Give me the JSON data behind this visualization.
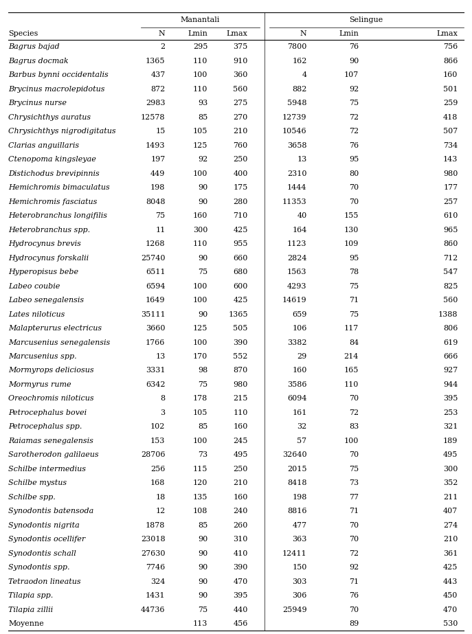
{
  "rows": [
    [
      "Bagrus bajad",
      "2",
      "295",
      "375",
      "7800",
      "76",
      "756"
    ],
    [
      "Bagrus docmak",
      "1365",
      "110",
      "910",
      "162",
      "90",
      "866"
    ],
    [
      "Barbus bynni occidentalis",
      "437",
      "100",
      "360",
      "4",
      "107",
      "160"
    ],
    [
      "Brycinus macrolepidotus",
      "872",
      "110",
      "560",
      "882",
      "92",
      "501"
    ],
    [
      "Brycinus nurse",
      "2983",
      "93",
      "275",
      "5948",
      "75",
      "259"
    ],
    [
      "Chrysichthys auratus",
      "12578",
      "85",
      "270",
      "12739",
      "72",
      "418"
    ],
    [
      "Chrysichthys nigrodigitatus",
      "15",
      "105",
      "210",
      "10546",
      "72",
      "507"
    ],
    [
      "Clarias anguillaris",
      "1493",
      "125",
      "760",
      "3658",
      "76",
      "734"
    ],
    [
      "Ctenopoma kingsleyae",
      "197",
      "92",
      "250",
      "13",
      "95",
      "143"
    ],
    [
      "Distichodus brevipinnis",
      "449",
      "100",
      "400",
      "2310",
      "80",
      "980"
    ],
    [
      "Hemichromis bimaculatus",
      "198",
      "90",
      "175",
      "1444",
      "70",
      "177"
    ],
    [
      "Hemichromis fasciatus",
      "8048",
      "90",
      "280",
      "11353",
      "70",
      "257"
    ],
    [
      "Heterobranchus longifilis",
      "75",
      "160",
      "710",
      "40",
      "155",
      "610"
    ],
    [
      "Heterobranchus spp.",
      "11",
      "300",
      "425",
      "164",
      "130",
      "965"
    ],
    [
      "Hydrocynus brevis",
      "1268",
      "110",
      "955",
      "1123",
      "109",
      "860"
    ],
    [
      "Hydrocynus forskalii",
      "25740",
      "90",
      "660",
      "2824",
      "95",
      "712"
    ],
    [
      "Hyperopisus bebe",
      "6511",
      "75",
      "680",
      "1563",
      "78",
      "547"
    ],
    [
      "Labeo coubie",
      "6594",
      "100",
      "600",
      "4293",
      "75",
      "825"
    ],
    [
      "Labeo senegalensis",
      "1649",
      "100",
      "425",
      "14619",
      "71",
      "560"
    ],
    [
      "Lates niloticus",
      "35111",
      "90",
      "1365",
      "659",
      "75",
      "1388"
    ],
    [
      "Malapterurus electricus",
      "3660",
      "125",
      "505",
      "106",
      "117",
      "806"
    ],
    [
      "Marcusenius senegalensis",
      "1766",
      "100",
      "390",
      "3382",
      "84",
      "619"
    ],
    [
      "Marcusenius spp.",
      "13",
      "170",
      "552",
      "29",
      "214",
      "666"
    ],
    [
      "Mormyrops deliciosus",
      "3331",
      "98",
      "870",
      "160",
      "165",
      "927"
    ],
    [
      "Mormyrus rume",
      "6342",
      "75",
      "980",
      "3586",
      "110",
      "944"
    ],
    [
      "Oreochromis niloticus",
      "8",
      "178",
      "215",
      "6094",
      "70",
      "395"
    ],
    [
      "Petrocephalus bovei",
      "3",
      "105",
      "110",
      "161",
      "72",
      "253"
    ],
    [
      "Petrocephalus spp.",
      "102",
      "85",
      "160",
      "32",
      "83",
      "321"
    ],
    [
      "Raiamas senegalensis",
      "153",
      "100",
      "245",
      "57",
      "100",
      "189"
    ],
    [
      "Sarotherodon galilaeus",
      "28706",
      "73",
      "495",
      "32640",
      "70",
      "495"
    ],
    [
      "Schilbe intermedius",
      "256",
      "115",
      "250",
      "2015",
      "75",
      "300"
    ],
    [
      "Schilbe mystus",
      "168",
      "120",
      "210",
      "8418",
      "73",
      "352"
    ],
    [
      "Schilbe spp.",
      "18",
      "135",
      "160",
      "198",
      "77",
      "211"
    ],
    [
      "Synodontis batensoda",
      "12",
      "108",
      "240",
      "8816",
      "71",
      "407"
    ],
    [
      "Synodontis nigrita",
      "1878",
      "85",
      "260",
      "477",
      "70",
      "274"
    ],
    [
      "Synodontis ocellifer",
      "23018",
      "90",
      "310",
      "363",
      "70",
      "210"
    ],
    [
      "Synodontis schall",
      "27630",
      "90",
      "410",
      "12411",
      "72",
      "361"
    ],
    [
      "Synodontis spp.",
      "7746",
      "90",
      "390",
      "150",
      "92",
      "425"
    ],
    [
      "Tetraodon lineatus",
      "324",
      "90",
      "470",
      "303",
      "71",
      "443"
    ],
    [
      "Tilapia spp.",
      "1431",
      "90",
      "395",
      "306",
      "76",
      "450"
    ],
    [
      "Tilapia zillii",
      "44736",
      "75",
      "440",
      "25949",
      "70",
      "470"
    ],
    [
      "Moyenne",
      "",
      "113",
      "456",
      "",
      "89",
      "530"
    ]
  ],
  "figsize": [
    6.87,
    9.23
  ],
  "dpi": 100,
  "font_size": 8.0,
  "bg_color": "#ffffff"
}
